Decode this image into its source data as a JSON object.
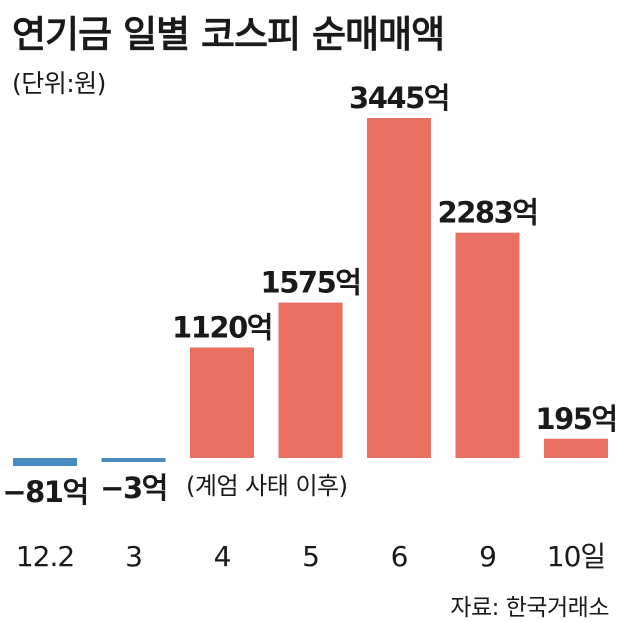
{
  "title": "연기금 일별 코스피 순매매액",
  "unit": "(단위:원)",
  "annotation": "(계엄 사태 이후)",
  "source": "자료: 한국거래소",
  "colors": {
    "positive": "#e86f62",
    "negative": "#4a8bbf",
    "text": "#1a1a1a"
  },
  "chart_data": {
    "type": "bar",
    "categories": [
      "12.2",
      "3",
      "4",
      "5",
      "6",
      "9",
      "10일"
    ],
    "values": [
      -81,
      -3,
      1120,
      1575,
      3445,
      2283,
      195
    ],
    "value_labels": [
      "−81억",
      "−3억",
      "1120억",
      "1575억",
      "3445억",
      "2283억",
      "195억"
    ],
    "ylabel": "",
    "xlabel": "",
    "grid": false
  }
}
